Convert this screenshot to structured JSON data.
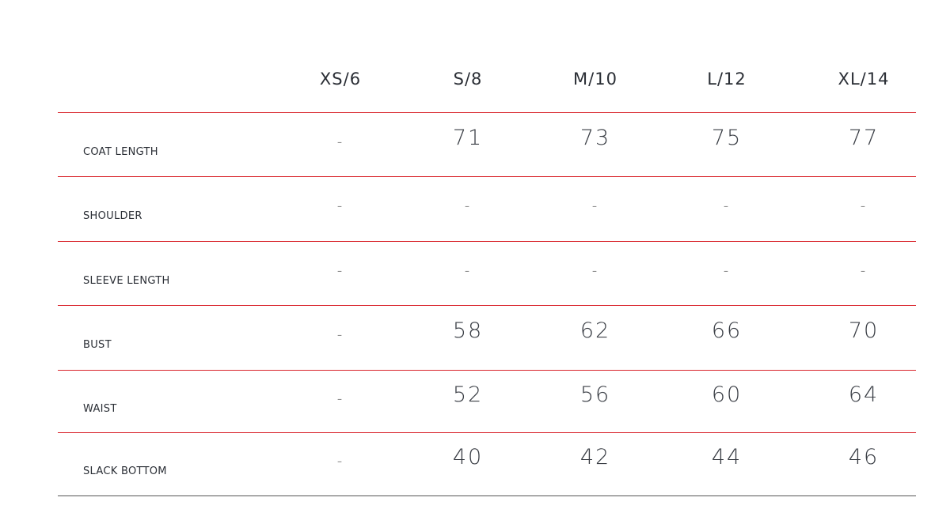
{
  "columns": [
    "XS/6",
    "S/8",
    "M/10",
    "L/12",
    "XL/14"
  ],
  "rows": [
    {
      "label": "COAT LENGTH",
      "values": [
        "-",
        "71",
        "73",
        "75",
        "77"
      ]
    },
    {
      "label": "SHOULDER",
      "values": [
        "-",
        "-",
        "-",
        "-",
        "-"
      ]
    },
    {
      "label": "SLEEVE LENGTH",
      "values": [
        "-",
        "-",
        "-",
        "-",
        "-"
      ]
    },
    {
      "label": "BUST",
      "values": [
        "-",
        "58",
        "62",
        "66",
        "70"
      ]
    },
    {
      "label": "WAIST",
      "values": [
        "-",
        "52",
        "56",
        "60",
        "64"
      ]
    },
    {
      "label": "SLACK BOTTOM",
      "values": [
        "-",
        "40",
        "42",
        "44",
        "46"
      ]
    }
  ],
  "colors": {
    "divider": "#d9242b",
    "text": "#2a2e35"
  }
}
